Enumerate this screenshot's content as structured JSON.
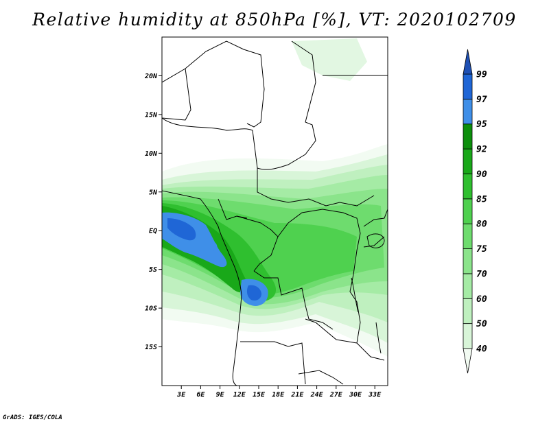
{
  "title": "Relative humidity at 850hPa [%], VT: 2020102709",
  "credit": "GrADS: IGES/COLA",
  "map": {
    "lon_range": [
      0,
      35
    ],
    "lat_range": [
      -20,
      25
    ],
    "lat_ticks": [
      {
        "value": 20,
        "label": "20N"
      },
      {
        "value": 15,
        "label": "15N"
      },
      {
        "value": 10,
        "label": "10N"
      },
      {
        "value": 5,
        "label": "5N"
      },
      {
        "value": 0,
        "label": "EQ"
      },
      {
        "value": -5,
        "label": "5S"
      },
      {
        "value": -10,
        "label": "10S"
      },
      {
        "value": -15,
        "label": "15S"
      }
    ],
    "lon_ticks": [
      {
        "value": 3,
        "label": "3E"
      },
      {
        "value": 6,
        "label": "6E"
      },
      {
        "value": 9,
        "label": "9E"
      },
      {
        "value": 12,
        "label": "12E"
      },
      {
        "value": 15,
        "label": "15E"
      },
      {
        "value": 18,
        "label": "18E"
      },
      {
        "value": 21,
        "label": "21E"
      },
      {
        "value": 24,
        "label": "24E"
      },
      {
        "value": 27,
        "label": "27E"
      },
      {
        "value": 30,
        "label": "30E"
      },
      {
        "value": 33,
        "label": "33E"
      }
    ]
  },
  "colorbar": {
    "levels": [
      "40",
      "50",
      "60",
      "70",
      "75",
      "80",
      "85",
      "90",
      "92",
      "95",
      "97",
      "99"
    ],
    "colors": [
      "#f2fbf2",
      "#d8f5d8",
      "#bff0bf",
      "#a5eba5",
      "#8be48b",
      "#6edc6e",
      "#4fd14f",
      "#2fbf2f",
      "#19a819",
      "#0c8f0c",
      "#3f8fe8",
      "#1f66d6",
      "#1e50b4"
    ]
  },
  "colors": {
    "background": "#ffffff",
    "border": "#000000",
    "ocean_wet": "#3f8fe8",
    "land_green": "#4fd14f"
  }
}
